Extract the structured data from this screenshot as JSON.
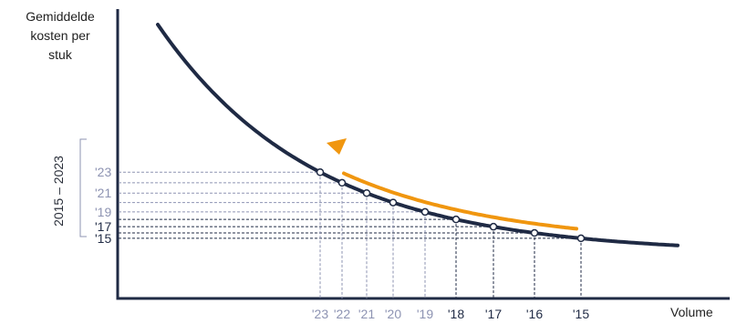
{
  "chart_data": {
    "type": "line",
    "ylabel": "Gemiddelde\nkosten per\nstuk",
    "xlabel": "Volume",
    "range_label": "2015 – 2023",
    "x_ticks": [
      "'23",
      "'22",
      "'21",
      "'20",
      "'19",
      "'18",
      "'17",
      "'16",
      "'15"
    ],
    "y_ticks": [
      "'23",
      "'21",
      "'19",
      "'17",
      "'15"
    ],
    "points": [
      {
        "year": "'15",
        "highlight": true
      },
      {
        "year": "'16",
        "highlight": true
      },
      {
        "year": "'17",
        "highlight": true
      },
      {
        "year": "'18",
        "highlight": true
      },
      {
        "year": "'19",
        "highlight": false
      },
      {
        "year": "'20",
        "highlight": false
      },
      {
        "year": "'21",
        "highlight": false
      },
      {
        "year": "'22",
        "highlight": false
      },
      {
        "year": "'23",
        "highlight": false
      }
    ],
    "colors": {
      "curve": "#1f2a44",
      "axis": "#1f2a44",
      "arrow": "#f0960f",
      "highlight": "#1f2a44",
      "muted": "#8d93b2"
    }
  }
}
